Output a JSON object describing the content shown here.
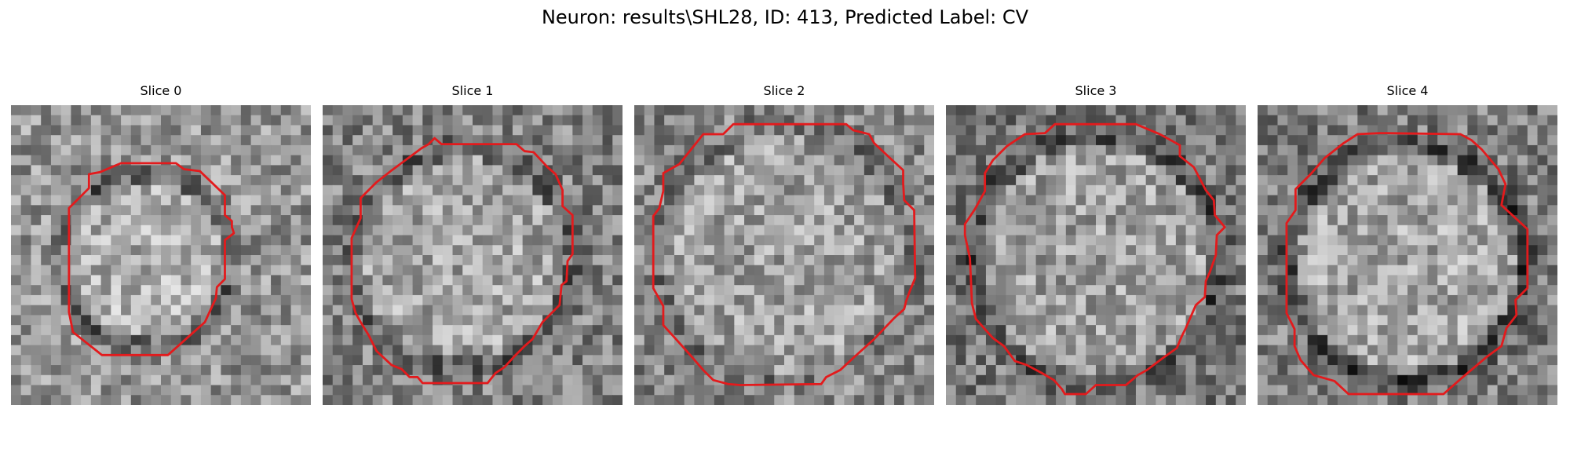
{
  "figure": {
    "title": "Neuron: results\\SHL28, ID: 413, Predicted Label: CV",
    "contour_color": "#e31a1c",
    "colormap": "gray"
  },
  "panels": [
    {
      "title": "Slice 0"
    },
    {
      "title": "Slice 1"
    },
    {
      "title": "Slice 2"
    },
    {
      "title": "Slice 3"
    },
    {
      "title": "Slice 4"
    }
  ]
}
